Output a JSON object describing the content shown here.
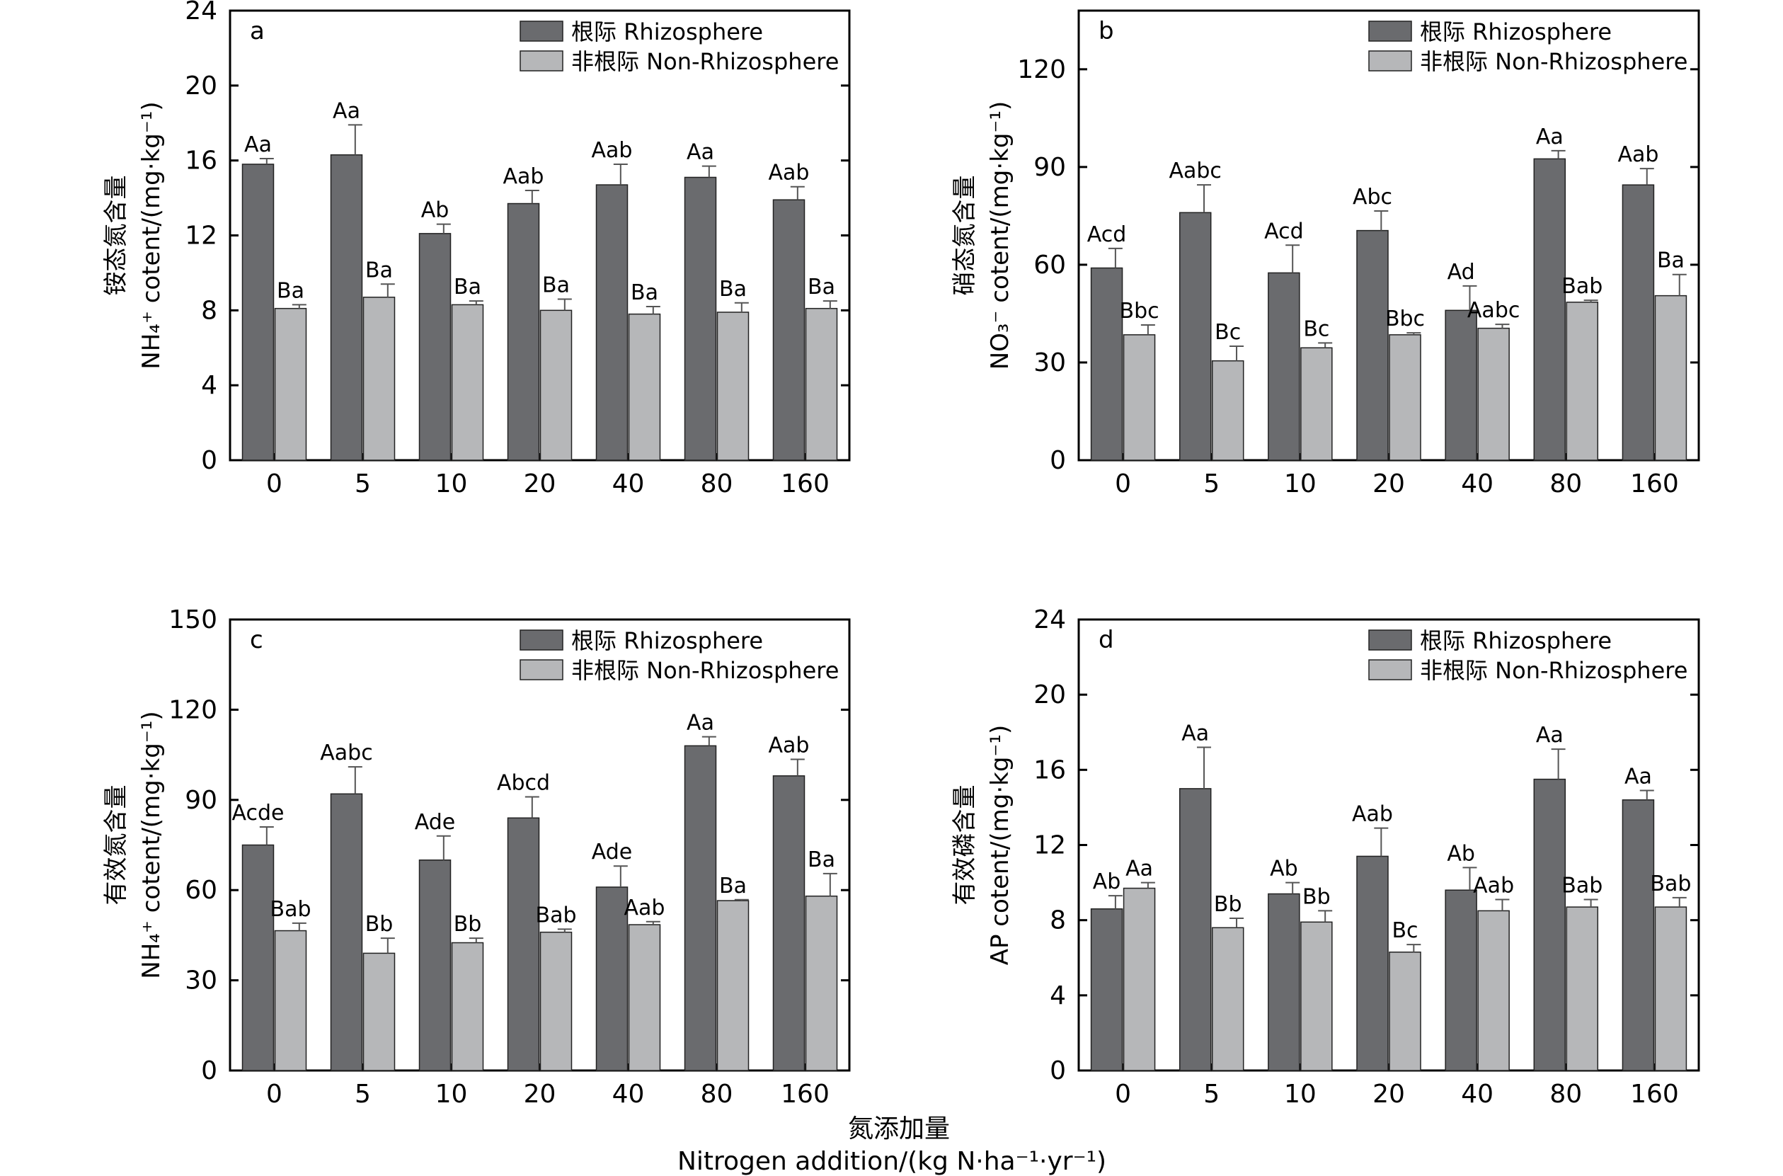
{
  "figure": {
    "xlabel_cn": "氮添加量",
    "xlabel_en": "Nitrogen addition/(kg N·ha⁻¹·yr⁻¹)"
  },
  "colors": {
    "rhizosphere": "#6a6b6e",
    "non_rhizosphere": "#b6b7b9",
    "bar_edge": "#222222",
    "error": "#555555"
  },
  "chart_data": [
    {
      "type": "bar",
      "panel": "a",
      "categories": [
        "0",
        "5",
        "10",
        "20",
        "40",
        "80",
        "160"
      ],
      "ylabel_cn": "铵态氮含量",
      "ylabel_en": "NH₄⁺ cotent/(mg·kg⁻¹)",
      "ylim": [
        0,
        24
      ],
      "yticks": [
        0,
        4,
        8,
        12,
        16,
        20,
        24
      ],
      "legend_position": "top-right",
      "series": [
        {
          "name": "根际 Rhizosphere",
          "values": [
            15.8,
            16.3,
            12.1,
            13.7,
            14.7,
            15.1,
            13.9
          ],
          "errors": [
            0.3,
            1.6,
            0.5,
            0.7,
            1.1,
            0.6,
            0.7
          ],
          "labels": [
            "Aa",
            "Aa",
            "Ab",
            "Aab",
            "Aab",
            "Aa",
            "Aab"
          ]
        },
        {
          "name": "非根际 Non-Rhizosphere",
          "values": [
            8.1,
            8.7,
            8.3,
            8.0,
            7.8,
            7.9,
            8.1
          ],
          "errors": [
            0.2,
            0.7,
            0.2,
            0.6,
            0.4,
            0.5,
            0.4
          ],
          "labels": [
            "Ba",
            "Ba",
            "Ba",
            "Ba",
            "Ba",
            "Ba",
            "Ba"
          ]
        }
      ]
    },
    {
      "type": "bar",
      "panel": "b",
      "categories": [
        "0",
        "5",
        "10",
        "20",
        "40",
        "80",
        "160"
      ],
      "ylabel_cn": "硝态氮含量",
      "ylabel_en": "NO₃⁻ cotent/(mg·kg⁻¹)",
      "ylim": [
        0,
        138
      ],
      "yticks": [
        0,
        30,
        60,
        90,
        120
      ],
      "legend_position": "top-right",
      "series": [
        {
          "name": "根际 Rhizosphere",
          "values": [
            59,
            76,
            57.5,
            70.5,
            46,
            92.5,
            84.5
          ],
          "errors": [
            6,
            8.5,
            8.5,
            6,
            7.5,
            2.5,
            5
          ],
          "labels": [
            "Acd",
            "Aabc",
            "Acd",
            "Abc",
            "Ad",
            "Aa",
            "Aab"
          ]
        },
        {
          "name": "非根际 Non-Rhizosphere",
          "values": [
            38.5,
            30.5,
            34.5,
            38.5,
            40.5,
            48.5,
            50.5
          ],
          "errors": [
            3,
            4.5,
            1.5,
            0.6,
            1.2,
            0.6,
            6.5
          ],
          "labels": [
            "Bbc",
            "Bc",
            "Bc",
            "Bbc",
            "Aabc",
            "Bab",
            "Ba"
          ]
        }
      ]
    },
    {
      "type": "bar",
      "panel": "c",
      "categories": [
        "0",
        "5",
        "10",
        "20",
        "40",
        "80",
        "160"
      ],
      "ylabel_cn": "有效氮含量",
      "ylabel_en": "NH₄⁺ cotent/(mg·kg⁻¹)",
      "ylim": [
        0,
        150
      ],
      "yticks": [
        0,
        30,
        60,
        90,
        120,
        150
      ],
      "legend_position": "top-right",
      "series": [
        {
          "name": "根际 Rhizosphere",
          "values": [
            75,
            92,
            70,
            84,
            61,
            108,
            98
          ],
          "errors": [
            6,
            9,
            8,
            7,
            7,
            3,
            5.5
          ],
          "labels": [
            "Acde",
            "Aabc",
            "Ade",
            "Abcd",
            "Ade",
            "Aa",
            "Aab"
          ]
        },
        {
          "name": "非根际 Non-Rhizosphere",
          "values": [
            46.5,
            39,
            42.5,
            46,
            48.5,
            56.5,
            58
          ],
          "errors": [
            2.5,
            5,
            1.5,
            1,
            1,
            0.3,
            7.5
          ],
          "labels": [
            "Bab",
            "Bb",
            "Bb",
            "Bab",
            "Aab",
            "Ba",
            "Ba"
          ]
        }
      ]
    },
    {
      "type": "bar",
      "panel": "d",
      "categories": [
        "0",
        "5",
        "10",
        "20",
        "40",
        "80",
        "160"
      ],
      "ylabel_cn": "有效磷含量",
      "ylabel_en": "AP cotent/(mg·kg⁻¹)",
      "ylim": [
        0,
        24
      ],
      "yticks": [
        0,
        4,
        8,
        12,
        16,
        20,
        24
      ],
      "legend_position": "top-right",
      "series": [
        {
          "name": "根际 Rhizosphere",
          "values": [
            8.6,
            15.0,
            9.4,
            11.4,
            9.6,
            15.5,
            14.4
          ],
          "errors": [
            0.7,
            2.2,
            0.6,
            1.5,
            1.2,
            1.6,
            0.5
          ],
          "labels": [
            "Ab",
            "Aa",
            "Ab",
            "Aab",
            "Ab",
            "Aa",
            "Aa"
          ]
        },
        {
          "name": "非根际 Non-Rhizosphere",
          "values": [
            9.7,
            7.6,
            7.9,
            6.3,
            8.5,
            8.7,
            8.7
          ],
          "errors": [
            0.3,
            0.5,
            0.6,
            0.4,
            0.6,
            0.4,
            0.5
          ],
          "labels": [
            "Aa",
            "Bb",
            "Bb",
            "Bc",
            "Aab",
            "Bab",
            "Bab"
          ]
        }
      ]
    }
  ]
}
